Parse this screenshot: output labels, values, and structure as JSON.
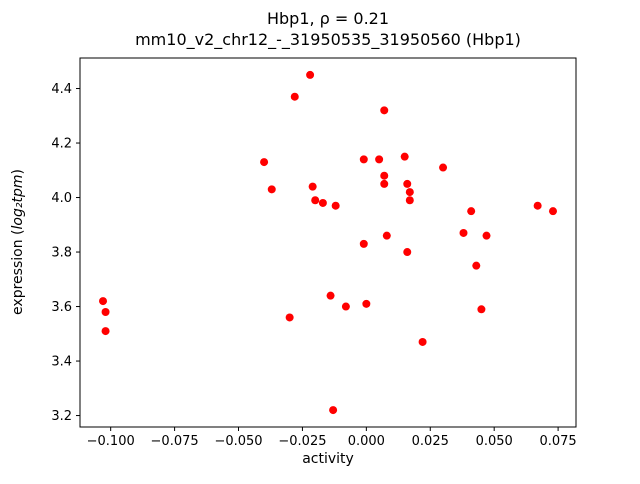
{
  "title": {
    "line1": "Hbp1, ρ = 0.21",
    "line2": "mm10_v2_chr12_-_31950535_31950560 (Hbp1)"
  },
  "ylabel_parts": {
    "prefix": "expression (",
    "math": "log₂tpm",
    "suffix": ")"
  },
  "chart_data": {
    "type": "scatter",
    "title": "Hbp1, ρ = 0.21\nmm10_v2_chr12_-_31950535_31950560 (Hbp1)",
    "xlabel": "activity",
    "ylabel": "expression (log₂tpm)",
    "rho": 0.21,
    "marker_color": "#ff0000",
    "marker_radius": 4,
    "xlim": [
      -0.112,
      0.082
    ],
    "ylim": [
      3.158,
      4.512
    ],
    "grid": false,
    "legend": "none",
    "xticks": [
      -0.1,
      -0.075,
      -0.05,
      -0.025,
      0.0,
      0.025,
      0.05,
      0.075
    ],
    "xtick_labels": [
      "−0.100",
      "−0.075",
      "−0.050",
      "−0.025",
      "0.000",
      "0.025",
      "0.050",
      "0.075"
    ],
    "yticks": [
      3.2,
      3.4,
      3.6,
      3.8,
      4.0,
      4.2,
      4.4
    ],
    "ytick_labels": [
      "3.2",
      "3.4",
      "3.6",
      "3.8",
      "4.0",
      "4.2",
      "4.4"
    ],
    "points": [
      [
        -0.103,
        3.62
      ],
      [
        -0.102,
        3.58
      ],
      [
        -0.102,
        3.51
      ],
      [
        -0.04,
        4.13
      ],
      [
        -0.037,
        4.03
      ],
      [
        -0.03,
        3.56
      ],
      [
        -0.028,
        4.37
      ],
      [
        -0.022,
        4.45
      ],
      [
        -0.021,
        4.04
      ],
      [
        -0.02,
        3.99
      ],
      [
        -0.017,
        3.98
      ],
      [
        -0.014,
        3.64
      ],
      [
        -0.013,
        3.22
      ],
      [
        -0.012,
        3.97
      ],
      [
        -0.008,
        3.6
      ],
      [
        -0.001,
        4.14
      ],
      [
        -0.001,
        3.83
      ],
      [
        0.0,
        3.61
      ],
      [
        0.005,
        4.14
      ],
      [
        0.007,
        4.32
      ],
      [
        0.007,
        4.08
      ],
      [
        0.007,
        4.05
      ],
      [
        0.008,
        3.86
      ],
      [
        0.015,
        4.15
      ],
      [
        0.016,
        4.05
      ],
      [
        0.017,
        4.02
      ],
      [
        0.017,
        3.99
      ],
      [
        0.016,
        3.8
      ],
      [
        0.022,
        3.47
      ],
      [
        0.03,
        4.11
      ],
      [
        0.038,
        3.87
      ],
      [
        0.041,
        3.95
      ],
      [
        0.043,
        3.75
      ],
      [
        0.047,
        3.86
      ],
      [
        0.045,
        3.59
      ],
      [
        0.067,
        3.97
      ],
      [
        0.073,
        3.95
      ]
    ]
  }
}
